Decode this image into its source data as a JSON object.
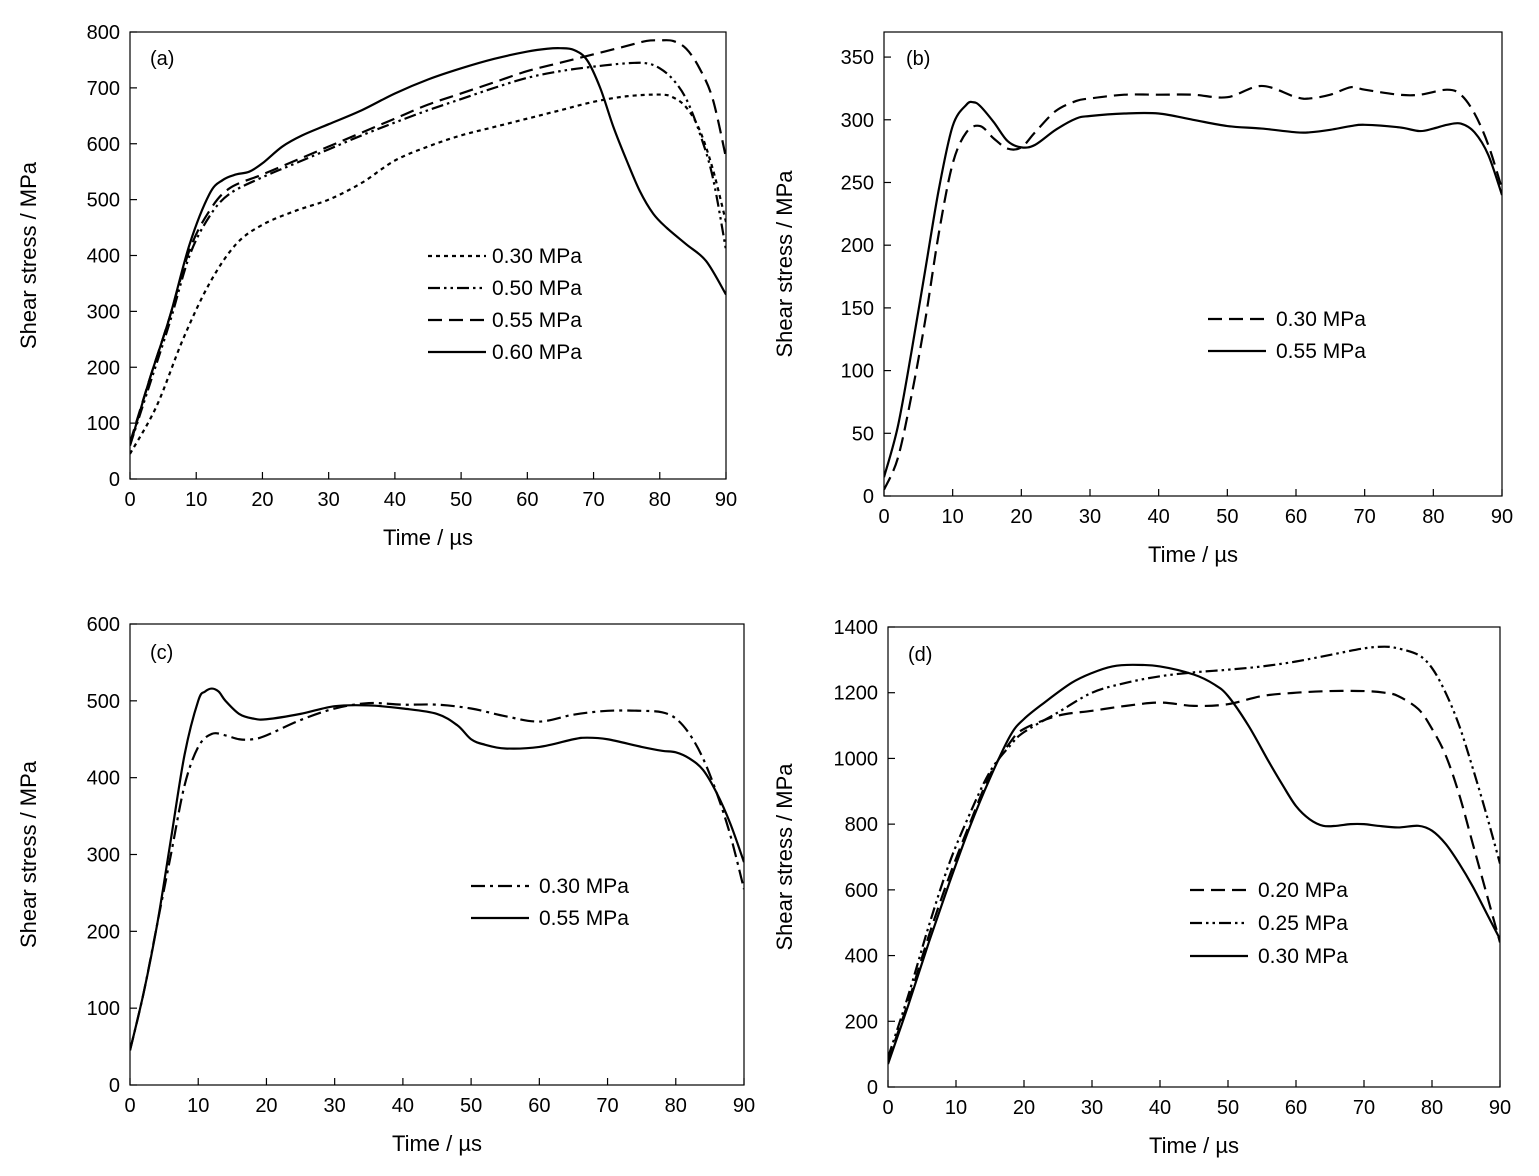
{
  "chart_data": [
    {
      "type": "line",
      "panel_label": "(a)",
      "xlabel": "Time / µs",
      "ylabel": "Shear stress / MPa",
      "xlim": [
        0,
        90
      ],
      "ylim": [
        0,
        800
      ],
      "xticks": [
        0,
        10,
        20,
        30,
        40,
        50,
        60,
        70,
        80,
        90
      ],
      "yticks": [
        0,
        100,
        200,
        300,
        400,
        500,
        600,
        700,
        800
      ],
      "grid": false,
      "legend_position": "center-right",
      "series": [
        {
          "name": "0.30 MPa",
          "style": "dotted",
          "x": [
            0,
            4,
            8,
            12,
            16,
            20,
            25,
            30,
            35,
            40,
            45,
            50,
            55,
            60,
            65,
            70,
            75,
            80,
            82,
            84,
            86,
            88,
            90
          ],
          "y": [
            45,
            130,
            250,
            350,
            420,
            455,
            480,
            500,
            530,
            570,
            595,
            615,
            630,
            645,
            660,
            675,
            685,
            688,
            683,
            665,
            625,
            555,
            460
          ]
        },
        {
          "name": "0.50 MPa",
          "style": "dash-dot-dot",
          "x": [
            0,
            3,
            6,
            9,
            12,
            15,
            20,
            25,
            30,
            35,
            40,
            45,
            50,
            55,
            60,
            65,
            70,
            75,
            78,
            80,
            82,
            84,
            86,
            88,
            90
          ],
          "y": [
            60,
            170,
            280,
            400,
            470,
            510,
            540,
            565,
            590,
            615,
            638,
            660,
            680,
            700,
            718,
            730,
            738,
            744,
            744,
            735,
            715,
            680,
            620,
            540,
            410
          ]
        },
        {
          "name": "0.55 MPa",
          "style": "dashed",
          "x": [
            0,
            3,
            6,
            9,
            12,
            15,
            20,
            25,
            30,
            35,
            40,
            45,
            50,
            55,
            60,
            65,
            70,
            75,
            78,
            80,
            82,
            84,
            86,
            88,
            90
          ],
          "y": [
            65,
            180,
            290,
            410,
            480,
            520,
            545,
            570,
            595,
            620,
            645,
            670,
            690,
            710,
            730,
            745,
            760,
            775,
            784,
            785,
            784,
            770,
            735,
            680,
            575
          ]
        },
        {
          "name": "0.60 MPa",
          "style": "solid",
          "x": [
            0,
            3,
            6,
            9,
            12,
            14,
            16,
            18,
            20,
            23,
            26,
            30,
            35,
            40,
            45,
            50,
            55,
            60,
            63,
            65,
            67,
            69,
            71,
            73,
            75,
            77,
            79,
            81,
            84,
            87,
            90
          ],
          "y": [
            60,
            180,
            290,
            420,
            510,
            535,
            545,
            550,
            565,
            595,
            615,
            635,
            660,
            690,
            715,
            735,
            752,
            765,
            770,
            771,
            768,
            750,
            700,
            630,
            570,
            515,
            475,
            450,
            420,
            390,
            330
          ]
        }
      ]
    },
    {
      "type": "line",
      "panel_label": "(b)",
      "xlabel": "Time / µs",
      "ylabel": "Shear stress / MPa",
      "xlim": [
        0,
        90
      ],
      "ylim": [
        0,
        370
      ],
      "xticks": [
        0,
        10,
        20,
        30,
        40,
        50,
        60,
        70,
        80,
        90
      ],
      "yticks": [
        0,
        50,
        100,
        150,
        200,
        250,
        300,
        350
      ],
      "grid": false,
      "legend_position": "center-right",
      "series": [
        {
          "name": "0.30 MPa",
          "style": "dashed",
          "x": [
            0,
            2,
            4,
            6,
            8,
            10,
            12,
            14,
            16,
            18,
            20,
            22,
            25,
            28,
            30,
            35,
            40,
            45,
            50,
            55,
            60,
            62,
            65,
            68,
            70,
            75,
            78,
            82,
            84,
            86,
            88,
            90
          ],
          "y": [
            5,
            30,
            80,
            140,
            210,
            265,
            290,
            295,
            285,
            277,
            278,
            290,
            307,
            315,
            317,
            320,
            320,
            320,
            318,
            327,
            318,
            317,
            320,
            326,
            324,
            320,
            320,
            324,
            320,
            305,
            280,
            245
          ]
        },
        {
          "name": "0.55 MPa",
          "style": "solid",
          "x": [
            0,
            2,
            4,
            6,
            8,
            10,
            12,
            13,
            14,
            16,
            18,
            20,
            22,
            25,
            28,
            30,
            35,
            40,
            45,
            50,
            55,
            60,
            62,
            65,
            68,
            70,
            75,
            78,
            80,
            82,
            84,
            86,
            88,
            90
          ],
          "y": [
            15,
            55,
            115,
            180,
            245,
            295,
            312,
            314,
            311,
            298,
            283,
            278,
            280,
            292,
            301,
            303,
            305,
            305,
            300,
            295,
            293,
            290,
            290,
            292,
            295,
            296,
            294,
            291,
            293,
            296,
            297,
            290,
            272,
            240
          ]
        }
      ]
    },
    {
      "type": "line",
      "panel_label": "(c)",
      "xlabel": "Time / µs",
      "ylabel": "Shear stress / MPa",
      "xlim": [
        0,
        90
      ],
      "ylim": [
        0,
        600
      ],
      "xticks": [
        0,
        10,
        20,
        30,
        40,
        50,
        60,
        70,
        80,
        90
      ],
      "yticks": [
        0,
        100,
        200,
        300,
        400,
        500,
        600
      ],
      "grid": false,
      "legend_position": "center-right",
      "series": [
        {
          "name": "0.30 MPa",
          "style": "dash-dot",
          "x": [
            0,
            2,
            4,
            6,
            8,
            10,
            12,
            14,
            16,
            18,
            20,
            25,
            30,
            35,
            40,
            45,
            50,
            55,
            60,
            65,
            70,
            75,
            78,
            80,
            82,
            84,
            86,
            88,
            90
          ],
          "y": [
            45,
            120,
            210,
            300,
            390,
            440,
            457,
            455,
            450,
            450,
            455,
            475,
            490,
            497,
            495,
            495,
            490,
            480,
            473,
            482,
            487,
            487,
            485,
            477,
            457,
            425,
            380,
            325,
            255
          ]
        },
        {
          "name": "0.55 MPa",
          "style": "solid",
          "x": [
            0,
            2,
            4,
            6,
            8,
            10,
            11,
            12,
            13,
            14,
            16,
            18,
            20,
            25,
            30,
            35,
            40,
            45,
            48,
            50,
            52,
            55,
            60,
            65,
            67,
            70,
            75,
            78,
            80,
            82,
            84,
            86,
            88,
            90
          ],
          "y": [
            45,
            120,
            210,
            320,
            430,
            500,
            512,
            516,
            512,
            500,
            483,
            477,
            476,
            483,
            493,
            494,
            490,
            483,
            468,
            450,
            443,
            438,
            440,
            450,
            452,
            450,
            440,
            435,
            433,
            425,
            410,
            380,
            340,
            290
          ]
        }
      ]
    },
    {
      "type": "line",
      "panel_label": "(d)",
      "xlabel": "Time / µs",
      "ylabel": "Shear stress / MPa",
      "xlim": [
        0,
        90
      ],
      "ylim": [
        0,
        1400
      ],
      "xticks": [
        0,
        10,
        20,
        30,
        40,
        50,
        60,
        70,
        80,
        90
      ],
      "yticks": [
        0,
        200,
        400,
        600,
        800,
        1000,
        1200,
        1400
      ],
      "grid": false,
      "legend_position": "bottom-right",
      "series": [
        {
          "name": "0.20 MPa",
          "style": "dashed",
          "x": [
            0,
            3,
            6,
            9,
            12,
            15,
            18,
            20,
            25,
            30,
            35,
            40,
            45,
            50,
            55,
            60,
            65,
            70,
            73,
            75,
            78,
            80,
            82,
            84,
            86,
            88,
            90
          ],
          "y": [
            80,
            260,
            460,
            640,
            800,
            950,
            1050,
            1090,
            1130,
            1145,
            1160,
            1170,
            1160,
            1165,
            1190,
            1200,
            1205,
            1205,
            1200,
            1190,
            1150,
            1090,
            1010,
            890,
            740,
            590,
            440
          ]
        },
        {
          "name": "0.25 MPa",
          "style": "dash-dot-dot",
          "x": [
            0,
            3,
            6,
            9,
            12,
            15,
            18,
            20,
            25,
            30,
            35,
            40,
            45,
            50,
            55,
            60,
            65,
            70,
            73,
            75,
            78,
            80,
            82,
            84,
            86,
            88,
            90
          ],
          "y": [
            90,
            280,
            490,
            680,
            830,
            960,
            1040,
            1080,
            1140,
            1200,
            1230,
            1250,
            1262,
            1270,
            1280,
            1295,
            1315,
            1335,
            1340,
            1335,
            1315,
            1275,
            1200,
            1100,
            970,
            830,
            680
          ]
        },
        {
          "name": "0.30 MPa",
          "style": "solid",
          "x": [
            0,
            3,
            6,
            9,
            12,
            15,
            18,
            20,
            23,
            27,
            30,
            33,
            36,
            40,
            45,
            48,
            50,
            53,
            56,
            58,
            60,
            62,
            64,
            66,
            68,
            70,
            72,
            75,
            78,
            80,
            82,
            84,
            86,
            88,
            90
          ],
          "y": [
            70,
            250,
            440,
            620,
            790,
            940,
            1070,
            1120,
            1170,
            1230,
            1260,
            1280,
            1285,
            1280,
            1255,
            1225,
            1190,
            1100,
            990,
            920,
            855,
            815,
            795,
            795,
            800,
            800,
            795,
            790,
            795,
            780,
            740,
            680,
            610,
            530,
            450
          ]
        }
      ]
    }
  ]
}
